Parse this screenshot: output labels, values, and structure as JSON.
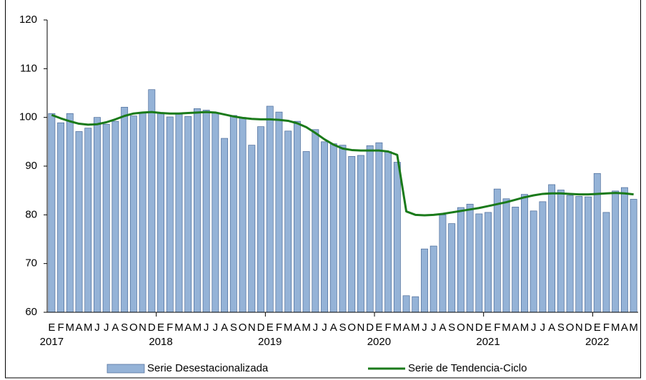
{
  "chart_data": {
    "type": "bar",
    "categories": [
      "E",
      "F",
      "M",
      "A",
      "M",
      "J",
      "J",
      "A",
      "S",
      "O",
      "N",
      "D",
      "E",
      "F",
      "M",
      "A",
      "M",
      "J",
      "J",
      "A",
      "S",
      "O",
      "N",
      "D",
      "E",
      "F",
      "M",
      "A",
      "M",
      "J",
      "J",
      "A",
      "S",
      "O",
      "N",
      "D",
      "E",
      "F",
      "M",
      "A",
      "M",
      "J",
      "J",
      "A",
      "S",
      "O",
      "N",
      "D",
      "E",
      "F",
      "M",
      "A",
      "M",
      "J",
      "J",
      "A",
      "S",
      "O",
      "N",
      "D",
      "E",
      "F",
      "M",
      "A",
      "M"
    ],
    "years": [
      "2017",
      "2018",
      "2019",
      "2020",
      "2021",
      "2022"
    ],
    "series": [
      {
        "name": "Serie Desestacionalizada",
        "type": "bar",
        "color": "#95b3d7",
        "edge": "#4a6a98",
        "values": [
          100.8,
          98.9,
          100.8,
          97.1,
          97.8,
          100.0,
          98.6,
          99.2,
          102.1,
          100.3,
          101.0,
          105.7,
          100.8,
          100.1,
          100.8,
          100.2,
          101.8,
          101.5,
          101.0,
          95.7,
          100.4,
          100.0,
          94.3,
          98.1,
          102.3,
          101.1,
          97.2,
          99.2,
          93.0,
          97.5,
          95.0,
          94.6,
          94.3,
          92.0,
          92.2,
          94.2,
          94.8,
          93.0,
          90.8,
          63.4,
          63.2,
          73.0,
          73.6,
          80.0,
          78.2,
          81.5,
          82.2,
          80.2,
          80.5,
          85.3,
          83.3,
          81.6,
          84.2,
          80.8,
          82.7,
          86.2,
          85.1,
          84.0,
          83.8,
          83.7,
          88.5,
          80.5,
          84.9,
          85.6,
          83.2
        ]
      },
      {
        "name": "Serie de Tendencia-Ciclo",
        "type": "line",
        "color": "#1a7a1a",
        "values": [
          100.5,
          99.8,
          99.2,
          98.7,
          98.5,
          98.6,
          99.0,
          99.6,
          100.3,
          100.8,
          101.0,
          101.1,
          100.9,
          100.8,
          100.8,
          100.9,
          101.0,
          101.1,
          101.0,
          100.6,
          100.2,
          99.9,
          99.7,
          99.6,
          99.6,
          99.5,
          99.3,
          98.8,
          98.0,
          96.8,
          95.5,
          94.4,
          93.6,
          93.3,
          93.2,
          93.2,
          93.2,
          93.0,
          92.3,
          80.7,
          80.0,
          79.9,
          80.0,
          80.2,
          80.5,
          80.8,
          81.1,
          81.4,
          81.8,
          82.2,
          82.6,
          83.1,
          83.6,
          84.0,
          84.3,
          84.4,
          84.4,
          84.3,
          84.2,
          84.2,
          84.3,
          84.4,
          84.5,
          84.4,
          84.2
        ]
      }
    ],
    "ylim": [
      60,
      120
    ],
    "yticks": [
      60,
      70,
      80,
      90,
      100,
      110,
      120
    ],
    "grid": false,
    "legend": "bottom"
  }
}
